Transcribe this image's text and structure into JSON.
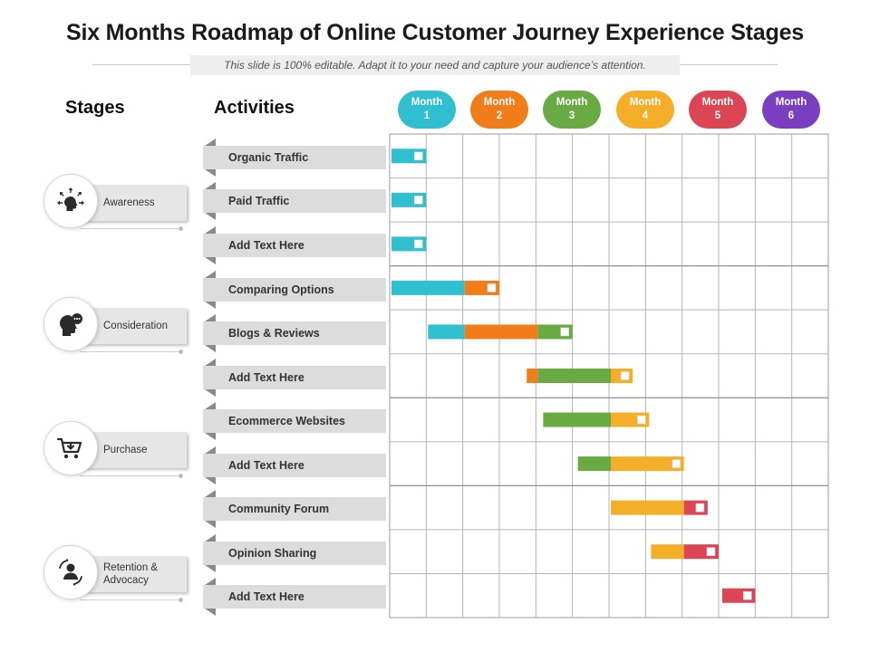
{
  "title": "Six Months Roadmap of Online Customer Journey Experience Stages",
  "subtitle": "This slide is 100% editable. Adapt it to your need and capture your audience’s attention.",
  "stages_header": "Stages",
  "activities_header": "Activities",
  "months": [
    {
      "line1": "Month",
      "line2": "1",
      "color": "#2fbfcf"
    },
    {
      "line1": "Month",
      "line2": "2",
      "color": "#f07c1a"
    },
    {
      "line1": "Month",
      "line2": "3",
      "color": "#6aaa45"
    },
    {
      "line1": "Month",
      "line2": "4",
      "color": "#f5ae28"
    },
    {
      "line1": "Month",
      "line2": "5",
      "color": "#dc4554"
    },
    {
      "line1": "Month",
      "line2": "6",
      "color": "#7a3fc1"
    }
  ],
  "stages": [
    {
      "label": "Awareness",
      "icon": "head-arrows-icon"
    },
    {
      "label": "Consideration",
      "icon": "head-thought-icon"
    },
    {
      "label": "Purchase",
      "icon": "shopping-cart-icon"
    },
    {
      "label": "Retention & Advocacy",
      "icon": "person-cycle-icon"
    }
  ],
  "activities": [
    "Organic Traffic",
    "Paid Traffic",
    "Add Text Here",
    "Comparing Options",
    "Blogs & Reviews",
    "Add Text Here",
    "Ecommerce  Websites",
    "Add Text Here",
    "Community Forum",
    "Opinion Sharing",
    "Add Text Here"
  ],
  "chart_data": {
    "type": "gantt",
    "x_unit": "half-month columns (0-12)",
    "x_range": [
      0,
      12
    ],
    "rows": 11,
    "segments": [
      {
        "row": 0,
        "start": 0.0,
        "end": 0.95,
        "month": 1
      },
      {
        "row": 1,
        "start": 0.0,
        "end": 0.95,
        "month": 1
      },
      {
        "row": 2,
        "start": 0.0,
        "end": 0.95,
        "month": 1
      },
      {
        "row": 3,
        "start": 0.0,
        "end": 2.0,
        "month": 1
      },
      {
        "row": 3,
        "start": 2.0,
        "end": 2.95,
        "month": 2
      },
      {
        "row": 4,
        "start": 1.0,
        "end": 2.0,
        "month": 1
      },
      {
        "row": 4,
        "start": 2.0,
        "end": 4.0,
        "month": 2
      },
      {
        "row": 4,
        "start": 4.0,
        "end": 4.95,
        "month": 3
      },
      {
        "row": 5,
        "start": 3.7,
        "end": 4.0,
        "month": 2
      },
      {
        "row": 5,
        "start": 4.0,
        "end": 6.0,
        "month": 3
      },
      {
        "row": 5,
        "start": 6.0,
        "end": 6.6,
        "month": 4
      },
      {
        "row": 6,
        "start": 4.15,
        "end": 6.0,
        "month": 3
      },
      {
        "row": 6,
        "start": 6.0,
        "end": 7.05,
        "month": 4
      },
      {
        "row": 7,
        "start": 5.1,
        "end": 6.0,
        "month": 3
      },
      {
        "row": 7,
        "start": 6.0,
        "end": 8.0,
        "month": 4
      },
      {
        "row": 8,
        "start": 6.0,
        "end": 8.0,
        "month": 4
      },
      {
        "row": 8,
        "start": 8.0,
        "end": 8.65,
        "month": 5
      },
      {
        "row": 9,
        "start": 7.1,
        "end": 8.0,
        "month": 4
      },
      {
        "row": 9,
        "start": 8.0,
        "end": 8.95,
        "month": 5
      },
      {
        "row": 10,
        "start": 9.05,
        "end": 9.95,
        "month": 5
      }
    ]
  }
}
